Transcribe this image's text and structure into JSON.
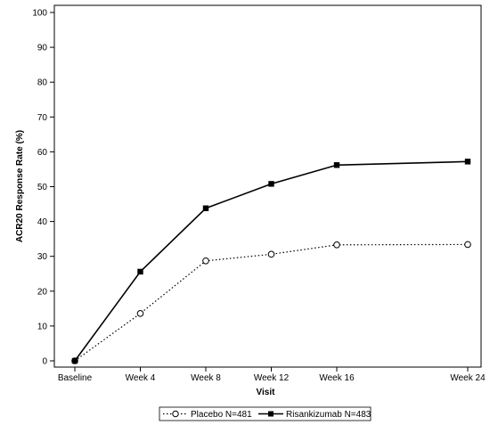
{
  "chart_data": {
    "type": "line",
    "title": "",
    "xlabel": "Visit",
    "ylabel": "ACR20 Response Rate (%)",
    "categories": [
      "Baseline",
      "Week 4",
      "Week 8",
      "Week 12",
      "Week 16",
      "Week 24"
    ],
    "x": [
      0,
      4,
      8,
      12,
      16,
      24
    ],
    "ylim": [
      0,
      100
    ],
    "yticks": [
      0,
      10,
      20,
      30,
      40,
      50,
      60,
      70,
      80,
      90,
      100
    ],
    "grid": false,
    "legend_position": "bottom",
    "series": [
      {
        "name": "Placebo N=481",
        "values": [
          0,
          13.6,
          28.7,
          30.6,
          33.3,
          33.4
        ],
        "line_style": "dotted",
        "marker": "open-circle",
        "color": "#000000"
      },
      {
        "name": "Risankizumab N=483",
        "values": [
          0,
          25.6,
          43.8,
          50.8,
          56.2,
          57.2
        ],
        "line_style": "solid",
        "marker": "filled-square",
        "color": "#000000"
      }
    ]
  }
}
